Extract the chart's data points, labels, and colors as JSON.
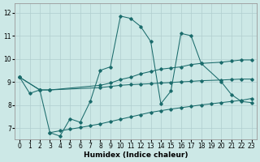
{
  "xlabel": "Humidex (Indice chaleur)",
  "bg_color": "#cce8e6",
  "grid_color": "#b0cece",
  "line_color": "#1a6b6b",
  "xlim": [
    -0.5,
    23.5
  ],
  "ylim": [
    6.5,
    12.4
  ],
  "xticks": [
    0,
    1,
    2,
    3,
    4,
    5,
    6,
    7,
    8,
    9,
    10,
    11,
    12,
    13,
    14,
    15,
    16,
    17,
    18,
    19,
    20,
    21,
    22,
    23
  ],
  "yticks": [
    7,
    8,
    9,
    10,
    11,
    12
  ],
  "curve1_x": [
    0,
    1,
    2,
    3,
    4,
    5,
    6,
    7,
    8,
    9,
    10,
    11,
    12,
    13,
    14,
    15,
    16,
    17,
    18,
    20,
    21,
    22,
    23
  ],
  "curve1_y": [
    9.2,
    8.5,
    8.65,
    6.8,
    6.65,
    7.4,
    7.25,
    8.15,
    9.5,
    9.65,
    11.85,
    11.75,
    11.4,
    10.75,
    8.05,
    8.6,
    11.1,
    11.0,
    9.8,
    9.0,
    8.45,
    8.15,
    8.1
  ],
  "curve2_x": [
    0,
    2,
    3,
    8,
    9,
    10,
    11,
    12,
    13,
    14,
    15,
    16,
    17,
    18,
    20,
    21,
    22,
    23
  ],
  "curve2_y": [
    9.2,
    8.65,
    8.65,
    8.85,
    8.95,
    9.1,
    9.2,
    9.35,
    9.45,
    9.55,
    9.6,
    9.65,
    9.75,
    9.8,
    9.85,
    9.9,
    9.95,
    9.95
  ],
  "curve3_x": [
    0,
    2,
    3,
    8,
    9,
    10,
    11,
    12,
    13,
    14,
    15,
    16,
    17,
    18,
    20,
    21,
    22,
    23
  ],
  "curve3_y": [
    9.2,
    8.65,
    8.65,
    8.75,
    8.8,
    8.85,
    8.88,
    8.9,
    8.92,
    8.95,
    8.97,
    9.0,
    9.02,
    9.05,
    9.08,
    9.1,
    9.12,
    9.12
  ],
  "curve4_x": [
    3,
    4,
    5,
    6,
    7,
    8,
    9,
    10,
    11,
    12,
    13,
    14,
    15,
    16,
    17,
    18,
    19,
    20,
    21,
    22,
    23
  ],
  "curve4_y": [
    6.8,
    6.88,
    6.95,
    7.02,
    7.1,
    7.18,
    7.28,
    7.38,
    7.48,
    7.58,
    7.68,
    7.75,
    7.82,
    7.88,
    7.94,
    8.0,
    8.05,
    8.1,
    8.15,
    8.2,
    8.28
  ]
}
